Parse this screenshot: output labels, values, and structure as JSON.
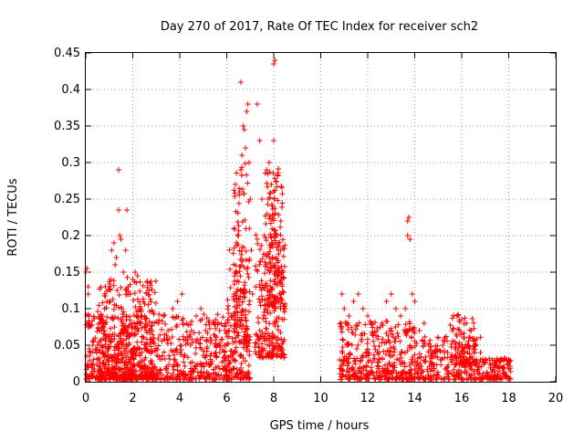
{
  "chart_data": {
    "type": "scatter",
    "title": "Day 270 of 2017, Rate Of TEC Index for receiver sch2",
    "xlabel": "GPS time / hours",
    "ylabel": "ROTI / TECUs",
    "xlim": [
      0,
      20
    ],
    "ylim": [
      0,
      0.45
    ],
    "xticks": [
      "0",
      "2",
      "4",
      "6",
      "8",
      "10",
      "12",
      "14",
      "16",
      "18",
      "20"
    ],
    "yticks": [
      "0",
      "0.05",
      "0.1",
      "0.15",
      "0.2",
      "0.25",
      "0.3",
      "0.35",
      "0.4",
      "0.45"
    ],
    "grid": true,
    "marker": "plus",
    "color": "#ff0000",
    "series": [
      {
        "points": [
          [
            0.0,
            0.15
          ],
          [
            0.05,
            0.155
          ],
          [
            0.1,
            0.13
          ],
          [
            0.1,
            0.12
          ],
          [
            0.15,
            0.09
          ],
          [
            0.2,
            0.04
          ],
          [
            0.3,
            0.05
          ],
          [
            0.4,
            0.06
          ],
          [
            0.5,
            0.05
          ],
          [
            0.6,
            0.07
          ],
          [
            0.7,
            0.09
          ],
          [
            0.8,
            0.1
          ],
          [
            0.9,
            0.11
          ],
          [
            1.0,
            0.13
          ],
          [
            1.05,
            0.14
          ],
          [
            1.1,
            0.18
          ],
          [
            1.2,
            0.19
          ],
          [
            1.25,
            0.16
          ],
          [
            1.3,
            0.17
          ],
          [
            1.4,
            0.29
          ],
          [
            1.45,
            0.2
          ],
          [
            1.5,
            0.195
          ],
          [
            1.4,
            0.235
          ],
          [
            1.75,
            0.235
          ],
          [
            1.6,
            0.15
          ],
          [
            1.7,
            0.18
          ],
          [
            1.8,
            0.13
          ],
          [
            1.9,
            0.12
          ],
          [
            2.0,
            0.14
          ],
          [
            2.1,
            0.15
          ],
          [
            2.2,
            0.145
          ],
          [
            2.3,
            0.1
          ],
          [
            2.5,
            0.09
          ],
          [
            2.7,
            0.07
          ],
          [
            2.9,
            0.06
          ],
          [
            3.1,
            0.08
          ],
          [
            3.3,
            0.09
          ],
          [
            3.5,
            0.07
          ],
          [
            3.7,
            0.1
          ],
          [
            3.9,
            0.11
          ],
          [
            4.1,
            0.12
          ],
          [
            4.3,
            0.08
          ],
          [
            4.5,
            0.07
          ],
          [
            4.7,
            0.09
          ],
          [
            4.9,
            0.1
          ],
          [
            5.1,
            0.07
          ],
          [
            5.3,
            0.06
          ],
          [
            5.5,
            0.05
          ],
          [
            5.7,
            0.04
          ],
          [
            5.9,
            0.05
          ],
          [
            6.1,
            0.07
          ],
          [
            6.2,
            0.09
          ],
          [
            6.3,
            0.12
          ],
          [
            6.4,
            0.15
          ],
          [
            6.5,
            0.2
          ],
          [
            6.55,
            0.26
          ],
          [
            6.6,
            0.29
          ],
          [
            6.65,
            0.31
          ],
          [
            6.6,
            0.41
          ],
          [
            6.7,
            0.35
          ],
          [
            6.75,
            0.345
          ],
          [
            6.8,
            0.32
          ],
          [
            6.85,
            0.37
          ],
          [
            6.9,
            0.38
          ],
          [
            6.95,
            0.3
          ],
          [
            7.0,
            0.25
          ],
          [
            7.05,
            0.18
          ],
          [
            7.1,
            0.12
          ],
          [
            7.3,
            0.38
          ],
          [
            7.4,
            0.33
          ],
          [
            7.5,
            0.25
          ],
          [
            7.6,
            0.2
          ],
          [
            7.7,
            0.29
          ],
          [
            7.8,
            0.3
          ],
          [
            7.9,
            0.27
          ],
          [
            8.0,
            0.26
          ],
          [
            8.0,
            0.435
          ],
          [
            8.05,
            0.44
          ],
          [
            8.0,
            0.33
          ],
          [
            8.1,
            0.2
          ],
          [
            8.2,
            0.18
          ],
          [
            8.3,
            0.22
          ],
          [
            8.4,
            0.15
          ],
          [
            8.5,
            0.1
          ],
          [
            10.9,
            0.12
          ],
          [
            11.0,
            0.1
          ],
          [
            11.2,
            0.09
          ],
          [
            11.4,
            0.11
          ],
          [
            11.6,
            0.12
          ],
          [
            11.8,
            0.1
          ],
          [
            12.0,
            0.09
          ],
          [
            12.2,
            0.08
          ],
          [
            12.4,
            0.07
          ],
          [
            12.6,
            0.08
          ],
          [
            12.8,
            0.11
          ],
          [
            13.0,
            0.12
          ],
          [
            13.2,
            0.1
          ],
          [
            13.4,
            0.09
          ],
          [
            13.6,
            0.1
          ],
          [
            13.7,
            0.22
          ],
          [
            13.75,
            0.225
          ],
          [
            13.7,
            0.2
          ],
          [
            13.8,
            0.195
          ],
          [
            13.9,
            0.12
          ],
          [
            14.0,
            0.11
          ],
          [
            14.2,
            0.07
          ],
          [
            14.4,
            0.08
          ],
          [
            14.6,
            0.05
          ],
          [
            14.8,
            0.04
          ],
          [
            15.0,
            0.06
          ],
          [
            15.2,
            0.05
          ],
          [
            15.4,
            0.04
          ],
          [
            15.6,
            0.07
          ],
          [
            15.8,
            0.09
          ],
          [
            16.0,
            0.085
          ],
          [
            16.2,
            0.08
          ],
          [
            16.4,
            0.07
          ],
          [
            16.6,
            0.05
          ],
          [
            16.8,
            0.03
          ],
          [
            17.0,
            0.03
          ],
          [
            17.2,
            0.025
          ],
          [
            17.4,
            0.02
          ],
          [
            17.6,
            0.015
          ],
          [
            17.8,
            0.02
          ],
          [
            18.0,
            0.03
          ]
        ]
      }
    ],
    "clusters": [
      {
        "x0": 0.0,
        "x1": 6.0,
        "ymin": 0.0,
        "ymax": 0.09,
        "n": 700
      },
      {
        "x0": 0.5,
        "x1": 3.0,
        "ymin": 0.0,
        "ymax": 0.14,
        "n": 350
      },
      {
        "x0": 6.0,
        "x1": 7.0,
        "ymin": 0.0,
        "ymax": 0.18,
        "n": 170
      },
      {
        "x0": 6.3,
        "x1": 7.0,
        "ymin": 0.05,
        "ymax": 0.3,
        "n": 110
      },
      {
        "x0": 7.2,
        "x1": 8.5,
        "ymin": 0.03,
        "ymax": 0.2,
        "n": 230
      },
      {
        "x0": 7.6,
        "x1": 8.4,
        "ymin": 0.1,
        "ymax": 0.29,
        "n": 140
      },
      {
        "x0": 10.8,
        "x1": 14.0,
        "ymin": 0.0,
        "ymax": 0.08,
        "n": 380
      },
      {
        "x0": 14.0,
        "x1": 16.8,
        "ymin": 0.0,
        "ymax": 0.06,
        "n": 240
      },
      {
        "x0": 15.5,
        "x1": 16.6,
        "ymin": 0.02,
        "ymax": 0.09,
        "n": 90
      },
      {
        "x0": 16.8,
        "x1": 18.1,
        "ymin": 0.0,
        "ymax": 0.03,
        "n": 110
      }
    ]
  }
}
